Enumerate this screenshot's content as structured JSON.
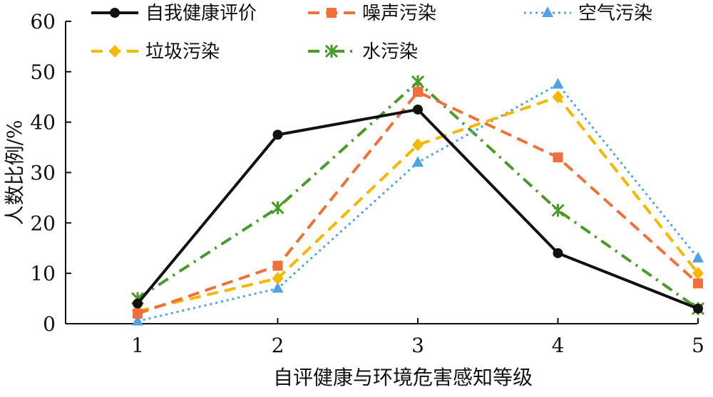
{
  "chart_data": {
    "type": "line",
    "xlabel": "自评健康与环境危害感知等级",
    "ylabel": "人数比例/%",
    "x": [
      1,
      2,
      3,
      4,
      5
    ],
    "xticks": [
      "1",
      "2",
      "3",
      "4",
      "5"
    ],
    "ylim": [
      0,
      60
    ],
    "yticks": [
      "0",
      "10",
      "20",
      "30",
      "40",
      "50",
      "60"
    ],
    "grid": false,
    "legend_position": "top",
    "series": [
      {
        "name": "自我健康评价",
        "values": [
          4,
          37.5,
          42.5,
          14,
          3
        ],
        "color": "#111111",
        "dash": "solid",
        "marker": "circle"
      },
      {
        "name": "噪声污染",
        "values": [
          2,
          11.5,
          46,
          33,
          8
        ],
        "color": "#f0703c",
        "dash": "dashed",
        "marker": "square"
      },
      {
        "name": "空气污染",
        "values": [
          0.5,
          7,
          32,
          47.5,
          13
        ],
        "color": "#4fa3e0",
        "dash": "dotted",
        "marker": "triangle"
      },
      {
        "name": "垃圾污染",
        "values": [
          2.5,
          9,
          35.5,
          45,
          10
        ],
        "color": "#f5b800",
        "dash": "dashed",
        "marker": "diamond"
      },
      {
        "name": "水污染",
        "values": [
          5,
          23,
          48,
          22.5,
          3
        ],
        "color": "#4a9a2a",
        "dash": "dashdot",
        "marker": "star"
      }
    ]
  }
}
